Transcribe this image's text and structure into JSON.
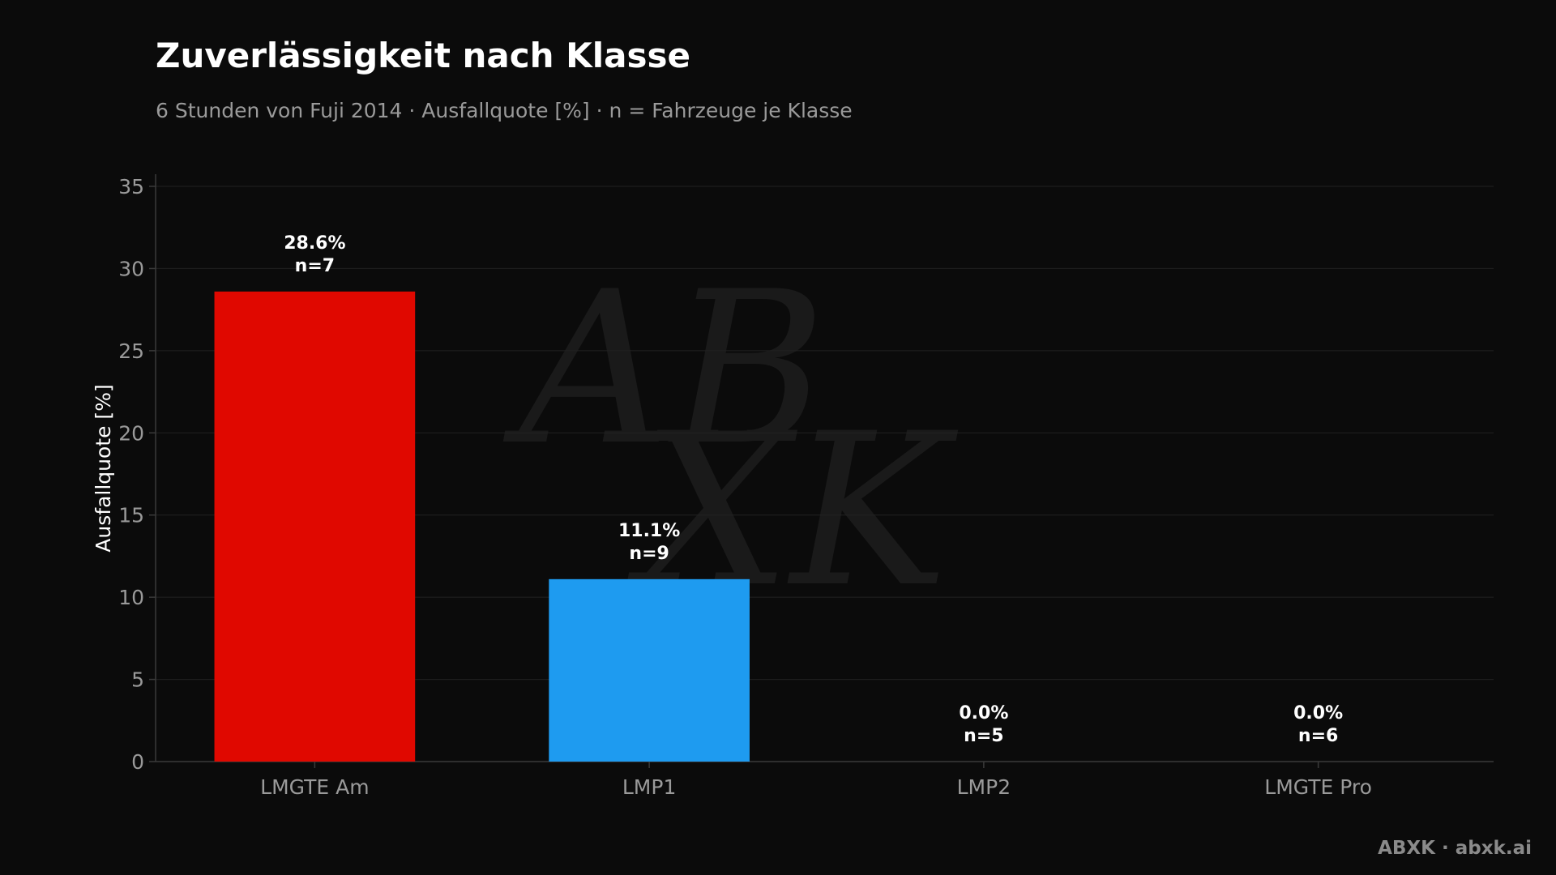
{
  "title": "Zuverlässigkeit nach Klasse",
  "subtitle": "6 Stunden von Fuji 2014 · Ausfallquote [%] · n = Fahrzeuge je Klasse",
  "footer": "ABXK · abxk.ai",
  "watermark": {
    "line1": "AB",
    "line2": "XK"
  },
  "chart_data": {
    "type": "bar",
    "ylabel": "Ausfallquote [%]",
    "xlabel": "",
    "ylim": [
      0,
      35
    ],
    "yticks": [
      0,
      5,
      10,
      15,
      20,
      25,
      30,
      35
    ],
    "grid": true,
    "categories": [
      "LMGTE Am",
      "LMP1",
      "LMP2",
      "LMGTE Pro"
    ],
    "values": [
      28.6,
      11.1,
      0.0,
      0.0
    ],
    "n": [
      7,
      9,
      5,
      6
    ],
    "labels": [
      [
        "28.6%",
        "n=7"
      ],
      [
        "11.1%",
        "n=9"
      ],
      [
        "0.0%",
        "n=5"
      ],
      [
        "0.0%",
        "n=6"
      ]
    ],
    "colors": [
      "#e00800",
      "#1e9bf0",
      "#7a7a7a",
      "#7a7a7a"
    ]
  },
  "colors": {
    "background": "#0b0b0b",
    "grid": "#222222",
    "axis": "#3a3a3a",
    "tick_text": "#9a9a9a",
    "label_text": "#ffffff"
  }
}
